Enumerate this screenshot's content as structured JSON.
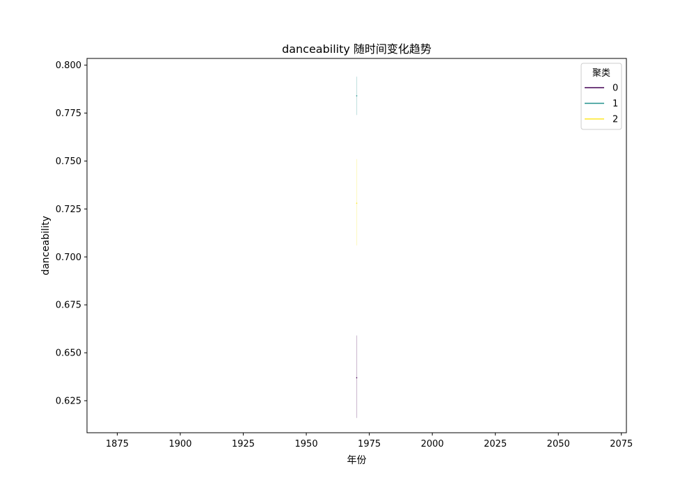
{
  "chart_data": {
    "type": "line",
    "title": "danceability 随时间变化趋势",
    "xlabel": "年份",
    "ylabel": "danceability",
    "xlim": [
      1863,
      2077
    ],
    "ylim": [
      0.6083,
      0.8035
    ],
    "xticks": [
      1875,
      1900,
      1925,
      1950,
      1975,
      2000,
      2025,
      2050,
      2075
    ],
    "yticks": [
      0.625,
      0.65,
      0.675,
      0.7,
      0.725,
      0.75,
      0.775,
      0.8
    ],
    "ytick_labels": [
      "0.625",
      "0.650",
      "0.675",
      "0.700",
      "0.725",
      "0.750",
      "0.775",
      "0.800"
    ],
    "grid": false,
    "legend": {
      "title": "聚类",
      "placement": "top-right"
    },
    "series": [
      {
        "name": "0",
        "color": "#440154",
        "x": 1970,
        "y_range": [
          0.616,
          0.659
        ],
        "y": 0.637
      },
      {
        "name": "1",
        "color": "#21918c",
        "x": 1970,
        "y_range": [
          0.774,
          0.794
        ],
        "y": 0.784
      },
      {
        "name": "2",
        "color": "#fde725",
        "x": 1970,
        "y_range": [
          0.706,
          0.751
        ],
        "y": 0.728
      }
    ]
  }
}
